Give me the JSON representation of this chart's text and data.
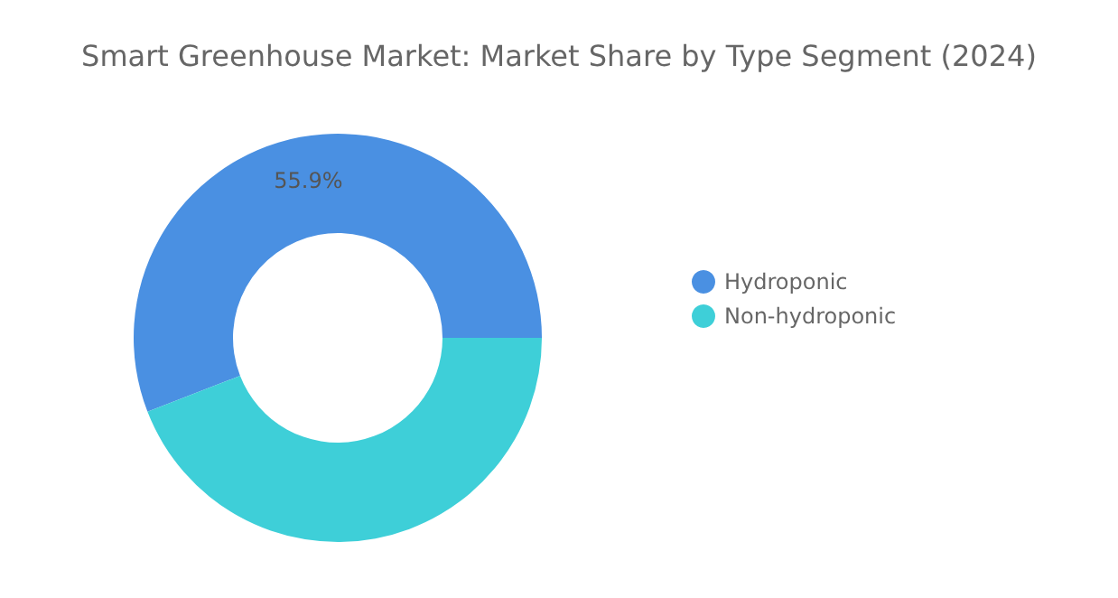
{
  "chart_data": {
    "type": "donut",
    "title": "Smart Greenhouse Market: Market Share by Type Segment (2024)",
    "categories": [
      "Hydroponic",
      "Non-hydroponic"
    ],
    "values": [
      55.9,
      44.1
    ],
    "colors": [
      "#4a90e2",
      "#3ecfd8"
    ],
    "value_labels": [
      "55.9%",
      null
    ],
    "legend": "right"
  }
}
